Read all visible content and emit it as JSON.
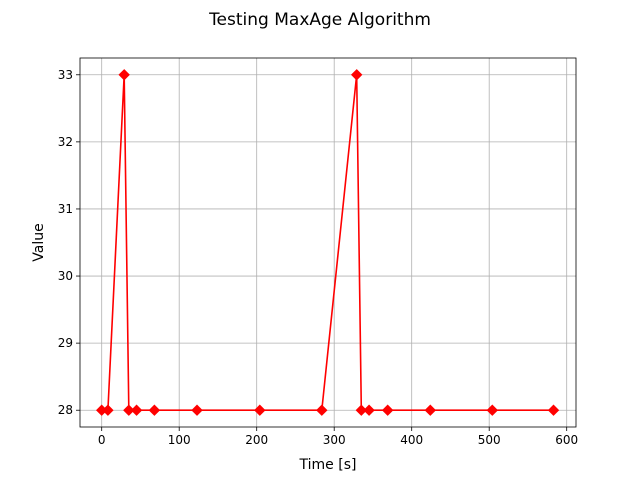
{
  "chart_data": {
    "type": "line",
    "title": "Testing MaxAge Algorithm",
    "xlabel": "Time [s]",
    "ylabel": "Value",
    "xlim": [
      -28,
      612
    ],
    "ylim": [
      27.75,
      33.25
    ],
    "xticks": [
      0,
      100,
      200,
      300,
      400,
      500,
      600
    ],
    "yticks": [
      28,
      29,
      30,
      31,
      32,
      33
    ],
    "grid": true,
    "series": [
      {
        "color": "#ff0000",
        "marker": "diamond",
        "x": [
          0,
          8,
          29,
          35,
          45,
          68,
          123,
          204,
          284,
          329,
          335,
          345,
          369,
          424,
          504,
          583
        ],
        "y": [
          28,
          28,
          33,
          28,
          28,
          28,
          28,
          28,
          28,
          33,
          28,
          28,
          28,
          28,
          28,
          28
        ]
      }
    ]
  }
}
